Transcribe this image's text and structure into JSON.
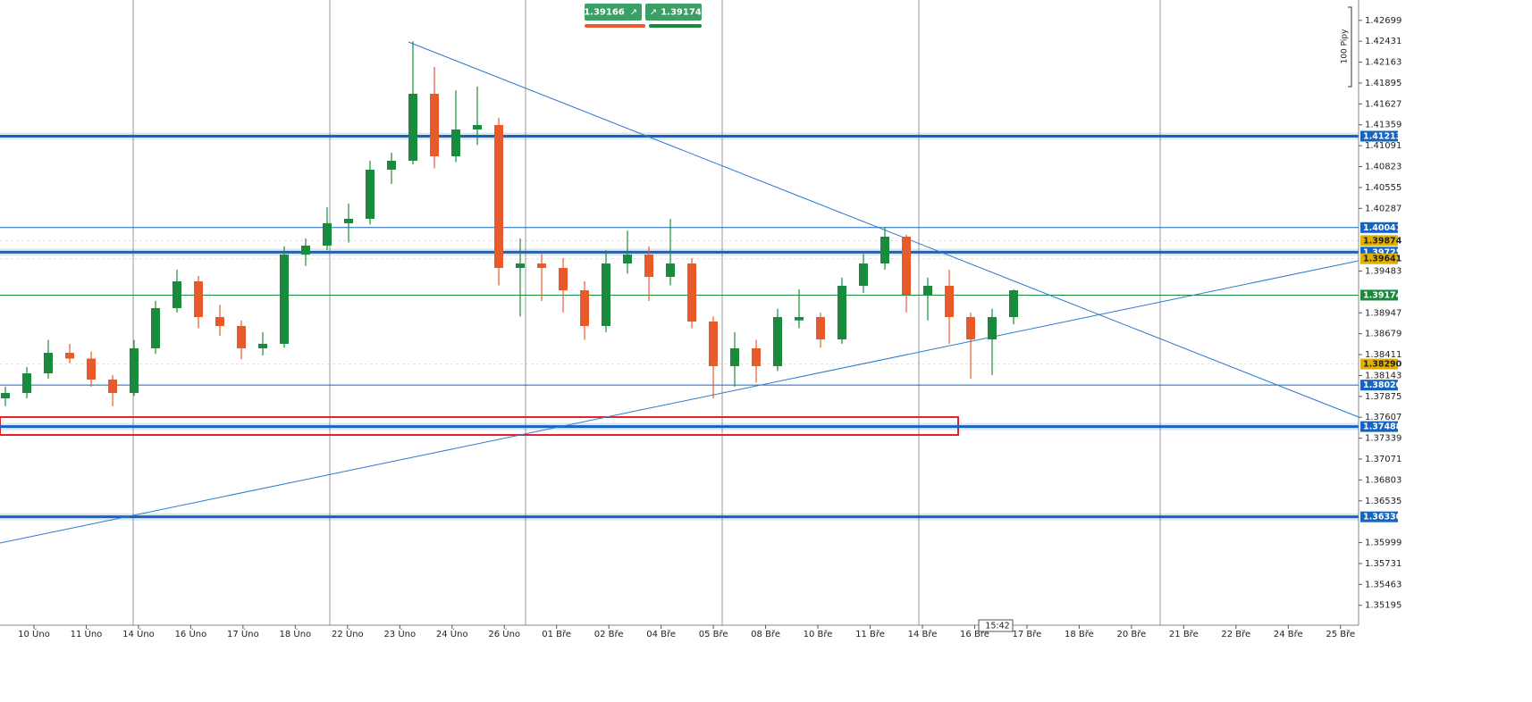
{
  "chart_data": {
    "type": "candlestick",
    "ylim": [
      1.3494,
      1.4296
    ],
    "yticks": [
      1.42699,
      1.42431,
      1.42163,
      1.41895,
      1.41627,
      1.41359,
      1.41091,
      1.40823,
      1.40555,
      1.40287,
      1.39483,
      1.38947,
      1.38679,
      1.38411,
      1.38143,
      1.37875,
      1.37607,
      1.37339,
      1.37071,
      1.36803,
      1.36535,
      1.35999,
      1.35731,
      1.35463,
      1.35195
    ],
    "xtick_labels": [
      "10 Úno",
      "11 Úno",
      "14 Úno",
      "16 Úno",
      "17 Úno",
      "18 Úno",
      "22 Úno",
      "23 Úno",
      "24 Úno",
      "26 Úno",
      "01 Bře",
      "02 Bře",
      "04 Bře",
      "05 Bře",
      "08 Bře",
      "10 Bře",
      "11 Bře",
      "14 Bře",
      "16 Bře",
      "17 Bře",
      "18 Bře",
      "20 Bře",
      "21 Bře",
      "22 Bře",
      "24 Bře",
      "25 Bře"
    ],
    "up_color": "#1a8a3c",
    "down_color": "#e85a2a",
    "open": [
      1.3785,
      1.37919,
      1.38171,
      1.38434,
      1.3836,
      1.38091,
      1.37919,
      1.38492,
      1.39007,
      1.39351,
      1.38893,
      1.38778,
      1.38492,
      1.38549,
      1.39695,
      1.39809,
      1.40096,
      1.40153,
      1.40783,
      1.40898,
      1.41757,
      1.40955,
      1.41299,
      1.41356,
      1.39523,
      1.3958,
      1.39523,
      1.39236,
      1.38778,
      1.3958,
      1.39695,
      1.39408,
      1.3958,
      1.38835,
      1.38263,
      1.38492,
      1.38263,
      1.3885,
      1.38893,
      1.38606,
      1.39294,
      1.3958,
      1.39924,
      1.39179,
      1.39294,
      1.38893,
      1.38606,
      1.38893
    ],
    "high": [
      1.38,
      1.3825,
      1.386,
      1.3855,
      1.3845,
      1.3815,
      1.386,
      1.391,
      1.395,
      1.3942,
      1.3905,
      1.3885,
      1.387,
      1.398,
      1.399,
      1.403,
      1.4035,
      1.409,
      1.41,
      1.4243,
      1.421,
      1.418,
      1.4185,
      1.4145,
      1.399,
      1.397,
      1.3965,
      1.3935,
      1.3975,
      1.4,
      1.398,
      1.4015,
      1.3965,
      1.389,
      1.387,
      1.386,
      1.39,
      1.3925,
      1.3895,
      1.394,
      1.397,
      1.4005,
      1.3995,
      1.394,
      1.395,
      1.3895,
      1.39,
      1.3925
    ],
    "low": [
      1.3775,
      1.3785,
      1.381,
      1.383,
      1.38,
      1.3775,
      1.3788,
      1.3842,
      1.3895,
      1.3875,
      1.3865,
      1.3835,
      1.384,
      1.385,
      1.3955,
      1.3975,
      1.3985,
      1.4008,
      1.406,
      1.4085,
      1.408,
      1.4088,
      1.411,
      1.393,
      1.389,
      1.391,
      1.3895,
      1.386,
      1.387,
      1.3945,
      1.391,
      1.393,
      1.3875,
      1.3785,
      1.38,
      1.3805,
      1.382,
      1.3875,
      1.385,
      1.3855,
      1.392,
      1.395,
      1.3895,
      1.3885,
      1.3855,
      1.381,
      1.3815,
      1.388
    ],
    "close": [
      1.37919,
      1.38171,
      1.38434,
      1.3836,
      1.38091,
      1.37919,
      1.38492,
      1.39007,
      1.39351,
      1.38893,
      1.38778,
      1.38492,
      1.38549,
      1.39695,
      1.39809,
      1.40096,
      1.40153,
      1.40783,
      1.40898,
      1.41757,
      1.40955,
      1.41299,
      1.41356,
      1.39523,
      1.3958,
      1.39523,
      1.39236,
      1.38778,
      1.3958,
      1.39695,
      1.39408,
      1.3958,
      1.38835,
      1.38263,
      1.38492,
      1.38263,
      1.38893,
      1.38893,
      1.38606,
      1.39294,
      1.3958,
      1.39924,
      1.39179,
      1.39294,
      1.38893,
      1.38606,
      1.38893,
      1.39236
    ],
    "levels": [
      {
        "value": 1.41213,
        "color": "#1565c0",
        "width": 3
      },
      {
        "value": 1.40041,
        "color": "#1565c0",
        "width": 1
      },
      {
        "value": 1.39874,
        "label": "1.39874",
        "color": "#e0b000",
        "width": 0
      },
      {
        "value": 1.39725,
        "color": "#1565c0",
        "width": 3
      },
      {
        "value": 1.39641,
        "label": "1.39641",
        "color": "#e0b000",
        "width": 0
      },
      {
        "value": 1.39174,
        "color": "#1a8a3c",
        "width": 1
      },
      {
        "value": 1.3829,
        "label": "1.38290",
        "color": "#e0b000",
        "width": 0
      },
      {
        "value": 1.3802,
        "label": "1.38020",
        "color": "#1565c0",
        "width": 1
      },
      {
        "value": 1.37488,
        "color": "#1565c0",
        "width": 3
      },
      {
        "value": 1.3633,
        "label": "1.36330",
        "color": "#1565c0",
        "width": 3
      }
    ],
    "bid": 1.39166,
    "ask": 1.39174,
    "scale_note": "100 Pipy",
    "time": "15:42"
  }
}
